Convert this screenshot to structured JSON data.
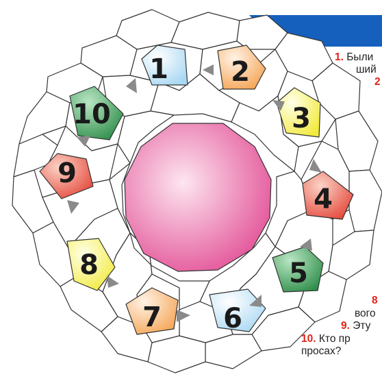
{
  "header_bar_color": "#1560bd",
  "center_color": "#e9679f",
  "cells": [
    {
      "number": "1",
      "color": "#c9e8f8",
      "arrow": "down-left"
    },
    {
      "number": "2",
      "color": "#f8c68e",
      "arrow": "left"
    },
    {
      "number": "3",
      "color": "#f7f383",
      "arrow": "up-left"
    },
    {
      "number": "4",
      "color": "#f0735d",
      "arrow": "up"
    },
    {
      "number": "5",
      "color": "#3fa35a",
      "arrow": "up"
    },
    {
      "number": "6",
      "color": "#c9e8f8",
      "arrow": "up-right"
    },
    {
      "number": "7",
      "color": "#f8c68e",
      "arrow": "right"
    },
    {
      "number": "8",
      "color": "#f7f383",
      "arrow": "down-right"
    },
    {
      "number": "9",
      "color": "#f0735d",
      "arrow": "down"
    },
    {
      "number": "10",
      "color": "#3fa35a",
      "arrow": "down"
    }
  ],
  "clues": [
    {
      "n": "1.",
      "text": "Были"
    },
    {
      "n": "",
      "text": "ший"
    },
    {
      "n": "2",
      "text": ""
    },
    {
      "n": "8",
      "text": ""
    },
    {
      "n": "",
      "text": "вого"
    },
    {
      "n": "9.",
      "text": "Эту"
    },
    {
      "n": "10.",
      "text": "Кто пр"
    },
    {
      "n": "",
      "text": "просах?"
    }
  ]
}
